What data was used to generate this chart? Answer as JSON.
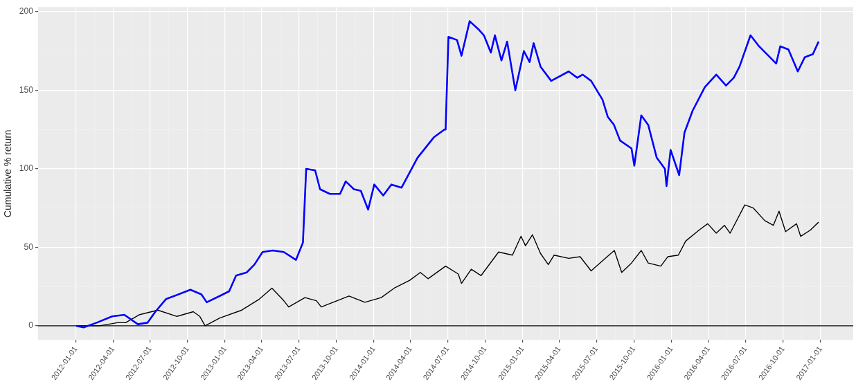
{
  "chart_data": {
    "type": "line",
    "ylabel": "Cumulative % return",
    "xlim": [
      "2011-09-30",
      "2017-03-22"
    ],
    "ylim": [
      -9,
      203
    ],
    "xticks": [
      "2012-01-01",
      "2012-04-01",
      "2012-07-01",
      "2012-10-01",
      "2013-01-01",
      "2013-04-01",
      "2013-07-01",
      "2013-10-01",
      "2014-01-01",
      "2014-04-01",
      "2014-07-01",
      "2014-10-01",
      "2015-01-01",
      "2015-04-01",
      "2015-07-01",
      "2015-10-01",
      "2016-01-01",
      "2016-04-01",
      "2016-07-01",
      "2016-10-01",
      "2017-01-01"
    ],
    "yticks": [
      0,
      50,
      100,
      150,
      200
    ],
    "grid": true,
    "legend": false,
    "marker": "none",
    "line_style": "solid",
    "ref_lines": [
      {
        "axis": "y",
        "value": 0,
        "color": "#000000"
      }
    ],
    "series": [
      {
        "color": "#0000ff",
        "x": [
          "2012-01-02",
          "2012-01-20",
          "2012-02-21",
          "2012-03-30",
          "2012-04-29",
          "2012-06-01",
          "2012-06-25",
          "2012-07-14",
          "2012-08-09",
          "2012-10-08",
          "2012-11-04",
          "2012-11-17",
          "2012-12-19",
          "2013-01-11",
          "2013-01-28",
          "2013-02-23",
          "2013-03-14",
          "2013-04-03",
          "2013-04-28",
          "2013-05-25",
          "2013-06-24",
          "2013-07-11",
          "2013-07-19",
          "2013-08-10",
          "2013-08-22",
          "2013-09-15",
          "2013-10-10",
          "2013-10-24",
          "2013-11-13",
          "2013-11-30",
          "2013-12-18",
          "2014-01-02",
          "2014-01-24",
          "2014-02-13",
          "2014-03-10",
          "2014-04-18",
          "2014-05-28",
          "2014-06-23",
          "2014-06-26",
          "2014-07-03",
          "2014-07-24",
          "2014-08-04",
          "2014-08-24",
          "2014-09-14",
          "2014-09-28",
          "2014-10-15",
          "2014-10-25",
          "2014-11-10",
          "2014-11-24",
          "2014-12-14",
          "2015-01-04",
          "2015-01-18",
          "2015-01-28",
          "2015-02-14",
          "2015-03-12",
          "2015-04-24",
          "2015-05-15",
          "2015-05-28",
          "2015-06-18",
          "2015-07-16",
          "2015-07-29",
          "2015-08-13",
          "2015-08-28",
          "2015-09-25",
          "2015-10-02",
          "2015-10-19",
          "2015-11-05",
          "2015-11-26",
          "2015-12-16",
          "2015-12-20",
          "2015-12-30",
          "2016-01-20",
          "2016-02-02",
          "2016-02-22",
          "2016-03-23",
          "2016-04-20",
          "2016-05-14",
          "2016-06-02",
          "2016-06-16",
          "2016-07-13",
          "2016-08-03",
          "2016-08-30",
          "2016-09-14",
          "2016-09-24",
          "2016-10-14",
          "2016-11-06",
          "2016-11-23",
          "2016-12-13",
          "2016-12-27"
        ],
        "values": [
          0,
          -1,
          2,
          6,
          7,
          1,
          2,
          9,
          17,
          23,
          20,
          15,
          19,
          22,
          32,
          34,
          39,
          47,
          48,
          47,
          42,
          53,
          100,
          99,
          87,
          84,
          84,
          92,
          87,
          86,
          74,
          90,
          83,
          90,
          88,
          107,
          120,
          125,
          125,
          184,
          182,
          172,
          194,
          189,
          185,
          174,
          185,
          169,
          181,
          150,
          175,
          168,
          180,
          165,
          156,
          162,
          158,
          160,
          156,
          144,
          133,
          128,
          118,
          113,
          102,
          134,
          128,
          107,
          100,
          89,
          112,
          96,
          123,
          137,
          152,
          160,
          153,
          158,
          165,
          185,
          178,
          171,
          167,
          178,
          176,
          162,
          171,
          173,
          181
        ]
      },
      {
        "color": "#000000",
        "x": [
          "2012-01-02",
          "2012-02-28",
          "2012-04-12",
          "2012-05-02",
          "2012-06-04",
          "2012-07-20",
          "2012-09-05",
          "2012-10-15",
          "2012-10-31",
          "2012-11-13",
          "2012-12-19",
          "2013-02-11",
          "2013-03-26",
          "2013-04-26",
          "2013-05-25",
          "2013-06-06",
          "2013-07-16",
          "2013-08-13",
          "2013-08-25",
          "2013-11-01",
          "2013-12-10",
          "2014-01-19",
          "2014-02-20",
          "2014-03-30",
          "2014-04-25",
          "2014-05-14",
          "2014-06-26",
          "2014-07-27",
          "2014-08-04",
          "2014-08-28",
          "2014-09-21",
          "2014-11-03",
          "2014-12-07",
          "2014-12-28",
          "2015-01-08",
          "2015-01-25",
          "2015-02-14",
          "2015-03-05",
          "2015-03-19",
          "2015-04-24",
          "2015-05-22",
          "2015-06-18",
          "2015-07-23",
          "2015-08-14",
          "2015-09-01",
          "2015-09-25",
          "2015-10-19",
          "2015-11-05",
          "2015-12-06",
          "2015-12-23",
          "2016-01-18",
          "2016-02-05",
          "2016-03-09",
          "2016-03-30",
          "2016-04-20",
          "2016-05-10",
          "2016-05-24",
          "2016-06-29",
          "2016-07-20",
          "2016-08-17",
          "2016-09-07",
          "2016-09-21",
          "2016-10-07",
          "2016-11-03",
          "2016-11-13",
          "2016-12-07",
          "2016-12-27"
        ],
        "values": [
          0,
          0,
          2,
          2,
          7,
          10,
          6,
          9,
          6,
          0,
          5,
          10,
          17,
          24,
          16,
          12,
          18,
          16,
          12,
          19,
          15,
          18,
          24,
          29,
          34,
          30,
          38,
          33,
          27,
          36,
          32,
          47,
          45,
          57,
          51,
          58,
          46,
          39,
          45,
          43,
          44,
          35,
          43,
          48,
          34,
          40,
          48,
          40,
          38,
          44,
          45,
          54,
          61,
          65,
          59,
          64,
          59,
          77,
          75,
          67,
          64,
          73,
          60,
          65,
          57,
          61,
          66
        ]
      }
    ]
  }
}
